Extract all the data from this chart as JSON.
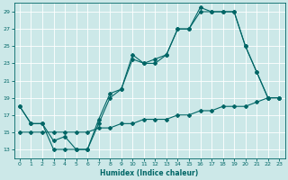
{
  "title": "",
  "xlabel": "Humidex (Indice chaleur)",
  "xlim": [
    -0.5,
    23.5
  ],
  "ylim": [
    12,
    30
  ],
  "yticks": [
    13,
    15,
    17,
    19,
    21,
    23,
    25,
    27,
    29
  ],
  "xticks": [
    0,
    1,
    2,
    3,
    4,
    5,
    6,
    7,
    8,
    9,
    10,
    11,
    12,
    13,
    14,
    15,
    16,
    17,
    18,
    19,
    20,
    21,
    22,
    23
  ],
  "bg_color": "#cce8e8",
  "line_color": "#006666",
  "grid_color": "#ffffff",
  "line1_x": [
    0,
    1,
    2,
    3,
    4,
    5,
    6,
    7,
    8,
    9,
    10,
    11,
    12,
    13,
    14,
    15,
    16,
    17,
    18,
    19,
    20,
    21,
    22,
    23
  ],
  "line1_y": [
    18,
    16,
    16,
    13,
    13,
    13,
    13,
    16.5,
    19.5,
    20,
    24,
    23,
    23.5,
    24,
    27,
    27,
    29.5,
    29,
    29,
    29,
    25,
    22,
    19,
    19
  ],
  "line2_x": [
    0,
    1,
    2,
    3,
    4,
    5,
    6,
    7,
    8,
    9,
    10,
    11,
    12,
    13,
    14,
    15,
    16,
    17,
    18,
    19,
    20,
    21,
    22,
    23
  ],
  "line2_y": [
    18,
    16,
    16,
    14,
    14.5,
    13,
    13,
    16,
    19,
    20,
    23.5,
    23,
    23,
    24,
    27,
    27,
    29,
    29,
    29,
    29,
    25,
    22,
    19,
    19
  ],
  "line3_x": [
    0,
    1,
    2,
    3,
    4,
    5,
    6,
    7,
    8,
    9,
    10,
    11,
    12,
    13,
    14,
    15,
    16,
    17,
    18,
    19,
    20,
    21,
    22,
    23
  ],
  "line3_y": [
    15,
    15,
    15,
    15,
    15,
    15,
    15,
    15.5,
    15.5,
    16,
    16,
    16.5,
    16.5,
    16.5,
    17,
    17,
    17.5,
    17.5,
    18,
    18,
    18,
    18.5,
    19,
    19
  ]
}
